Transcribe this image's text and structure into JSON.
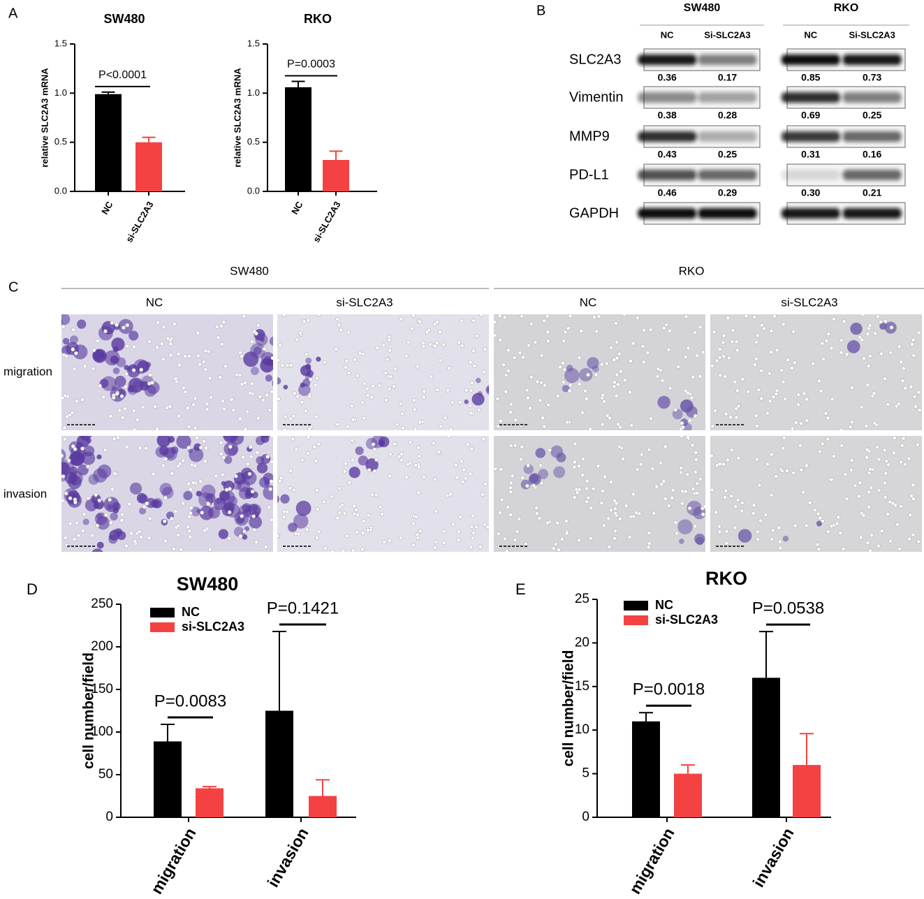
{
  "panel_labels": [
    "A",
    "B",
    "C",
    "D",
    "E"
  ],
  "chart_data": [
    {
      "type": "bar",
      "title": "SW480",
      "y_label": "relative SLC2A3 mRNA",
      "categories": [
        "NC",
        "si-SLC2A3"
      ],
      "values": [
        0.99,
        0.5
      ],
      "errors": [
        0.02,
        0.05
      ],
      "colors": [
        "#000000",
        "#f44242"
      ],
      "ylim": [
        0,
        1.5
      ],
      "yticks": [
        {
          "value": 0,
          "label": "0.0"
        },
        0.5,
        {
          "value": 1,
          "label": "1.0"
        },
        1.5
      ],
      "annotations": [
        "P<0.0001"
      ]
    },
    {
      "type": "bar",
      "title": "RKO",
      "y_label": "relative SLC2A3 mRNA",
      "categories": [
        "NC",
        "si-SLC2A3"
      ],
      "values": [
        1.06,
        0.32
      ],
      "errors": [
        0.06,
        0.09
      ],
      "colors": [
        "#000000",
        "#f44242"
      ],
      "ylim": [
        0,
        1.5
      ],
      "yticks": [
        {
          "value": 0,
          "label": "0.0"
        },
        0.5,
        {
          "value": 1,
          "label": "1.0"
        },
        1.5
      ],
      "annotations": [
        "P=0.0003"
      ]
    },
    {
      "type": "bar",
      "title": "SW480",
      "y_label": "cell number/field",
      "categories": [
        "migration",
        "invasion"
      ],
      "series": [
        {
          "name": "NC",
          "color": "#000000",
          "values": [
            89,
            125
          ],
          "errors": [
            20,
            93
          ]
        },
        {
          "name": "si-SLC2A3",
          "color": "#f44242",
          "values": [
            34,
            25
          ],
          "errors": [
            2,
            19
          ]
        }
      ],
      "ylim": [
        0,
        250
      ],
      "yticks": [
        0,
        50,
        100,
        150,
        200,
        250
      ],
      "annotations": [
        "P=0.0083",
        "P=0.1421"
      ]
    },
    {
      "type": "bar",
      "title": "RKO",
      "y_label": "cell number/field",
      "categories": [
        "migration",
        "invasion"
      ],
      "series": [
        {
          "name": "NC",
          "color": "#000000",
          "values": [
            11,
            16
          ],
          "errors": [
            1,
            5.3
          ]
        },
        {
          "name": "si-SLC2A3",
          "color": "#f44242",
          "values": [
            5,
            6
          ],
          "errors": [
            1,
            3.6
          ]
        }
      ],
      "ylim": [
        0,
        25
      ],
      "yticks": [
        0,
        5,
        10,
        15,
        20,
        25
      ],
      "annotations": [
        "P=0.0018",
        "P=0.0538"
      ]
    }
  ],
  "western_blot": {
    "proteins": [
      "SLC2A3",
      "Vimentin",
      "MMP9",
      "PD-L1",
      "GAPDH"
    ],
    "cell_lines": [
      {
        "name": "SW480",
        "lanes": [
          "NC",
          "Si-SLC2A3"
        ],
        "quantification": [
          [
            "0.36",
            "0.17"
          ],
          [
            "0.38",
            "0.28"
          ],
          [
            "0.43",
            "0.25"
          ],
          [
            "0.46",
            "0.29"
          ]
        ]
      },
      {
        "name": "RKO",
        "lanes": [
          "NC",
          "Si-SLC2A3"
        ],
        "quantification": [
          [
            "0.85",
            "0.73"
          ],
          [
            "0.69",
            "0.25"
          ],
          [
            "0.31",
            "0.16"
          ],
          [
            "0.30",
            "0.21"
          ]
        ]
      }
    ]
  },
  "micrographs": {
    "cell_lines": [
      "SW480",
      "RKO"
    ],
    "conditions": [
      "NC",
      "si-SLC2A3"
    ],
    "assays": [
      "migration",
      "invasion"
    ]
  }
}
